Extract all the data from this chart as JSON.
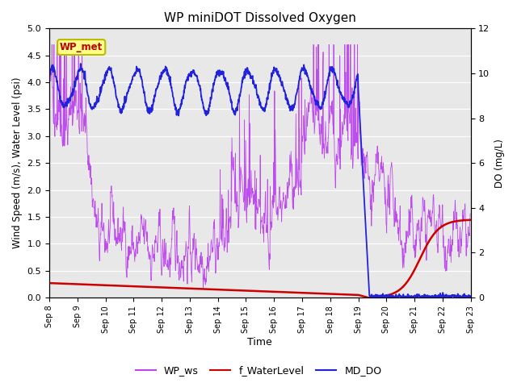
{
  "title": "WP miniDOT Dissolved Oxygen",
  "ylabel_left": "Wind Speed (m/s), Water Level (psi)",
  "ylabel_right": "DO (mg/L)",
  "xlabel": "Time",
  "ylim_left": [
    0,
    5.0
  ],
  "ylim_right": [
    0,
    12
  ],
  "yticks_left": [
    0.0,
    0.5,
    1.0,
    1.5,
    2.0,
    2.5,
    3.0,
    3.5,
    4.0,
    4.5,
    5.0
  ],
  "yticks_right": [
    0,
    2,
    4,
    6,
    8,
    10,
    12
  ],
  "background_color": "#e8e8e8",
  "fig_bg_color": "#ffffff",
  "wp_ws_color": "#bb44ee",
  "f_waterlevel_color": "#cc0000",
  "md_do_color": "#2222dd",
  "annotation_text": "WP_met",
  "annotation_color": "#bb0000",
  "annotation_bg": "#ffff88",
  "annotation_border": "#bbbb00",
  "tick_labels": [
    "Sep 8",
    "Sep 9",
    "Sep 10",
    "Sep 11",
    "Sep 12",
    "Sep 13",
    "Sep 14",
    "Sep 15",
    "Sep 16",
    "Sep 17",
    "Sep 18",
    "Sep 19",
    "Sep 20",
    "Sep 21",
    "Sep 22",
    "Sep 23"
  ],
  "legend_labels": [
    "WP_ws",
    "f_WaterLevel",
    "MD_DO"
  ]
}
